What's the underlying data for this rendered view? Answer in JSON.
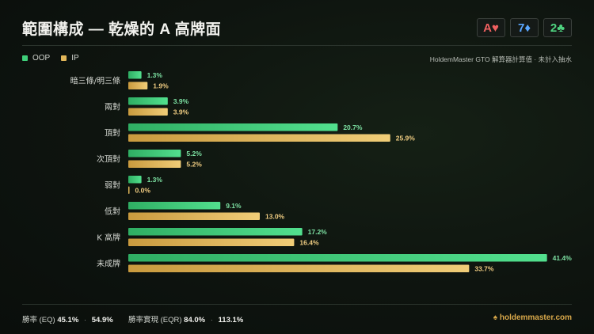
{
  "header": {
    "title": "範圍構成 — 乾燥的 A 高牌面",
    "cards": [
      {
        "rank": "A",
        "suit": "♥",
        "color": "#f06060"
      },
      {
        "rank": "7",
        "suit": "♦",
        "color": "#5aa7ff"
      },
      {
        "rank": "2",
        "suit": "♣",
        "color": "#4fd480"
      }
    ]
  },
  "legend": {
    "oop_label": "OOP",
    "ip_label": "IP",
    "oop_color": "#3fcf7a",
    "ip_color": "#e2b75a"
  },
  "source": "HoldemMaster GTO 解算器計算值 · 未計入抽水",
  "chart_data": {
    "type": "bar",
    "orientation": "horizontal",
    "categories": [
      "暗三條/明三條",
      "兩對",
      "頂對",
      "次頂對",
      "弱對",
      "低對",
      "K 高牌",
      "未成牌"
    ],
    "series": [
      {
        "name": "OOP",
        "values": [
          1.3,
          3.9,
          20.7,
          5.2,
          1.3,
          9.1,
          17.2,
          41.4
        ]
      },
      {
        "name": "IP",
        "values": [
          1.9,
          3.9,
          25.9,
          5.2,
          0.0,
          13.0,
          16.4,
          33.7
        ]
      }
    ],
    "unit": "%"
  },
  "footer": {
    "eq_label": "勝率 (EQ)",
    "eq_oop": "45.1%",
    "eq_ip": "54.9%",
    "eqr_label": "勝率實現 (EQR)",
    "eqr_oop": "84.0%",
    "eqr_ip": "113.1%",
    "dot": "·",
    "brand": "♠ holdemmaster.com"
  }
}
